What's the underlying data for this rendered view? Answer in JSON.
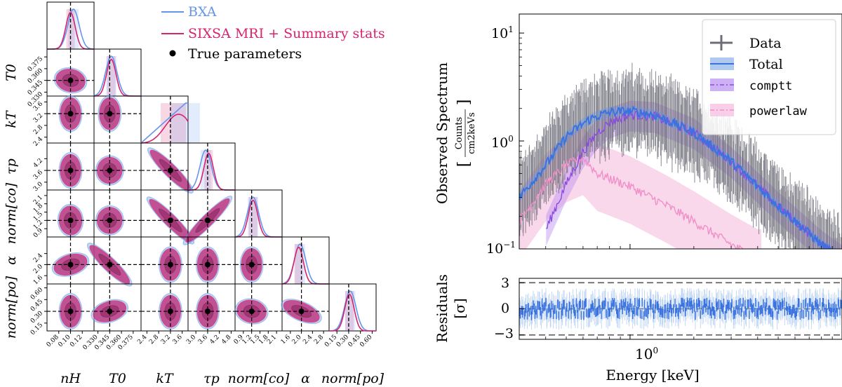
{
  "colors": {
    "bxa": "#6495ed",
    "sixsa": "#d6246e",
    "sixsa_fill": "#c0307a",
    "bxa_fill": "#8fb3e8",
    "data": "#6d6d78",
    "total": "#3a73e0",
    "comptt": "#8a4ce0",
    "powerlaw": "#f08fc8"
  },
  "corner": {
    "legend": [
      "BXA",
      "SIXSA MRI + Summary stats",
      "True parameters"
    ],
    "params": [
      "n_H",
      "T_0",
      "kT",
      "τ_p",
      "norm[co]",
      "α",
      "norm[po]"
    ],
    "xlabels": [
      "nH",
      "T0",
      "kT",
      "τp",
      "norm[co]",
      "α",
      "norm[po]"
    ],
    "ylabels": [
      "T0",
      "kT",
      "τp",
      "norm[co]",
      "α",
      "norm[po]"
    ],
    "xticks": [
      [
        "0.08",
        "0.10",
        "0.12"
      ],
      [
        "0.330",
        "0.345",
        "0.360",
        "0.375"
      ],
      [
        "2.4",
        "2.8",
        "3.2",
        "3.6"
      ],
      [
        "3.0",
        "3.6",
        "4.2",
        "4.8"
      ],
      [
        "0.9",
        "1.2",
        "1.5",
        "1.8",
        "2.1"
      ],
      [
        "1.6",
        "2.0",
        "2.4",
        "2.8"
      ],
      [
        "0.15",
        "0.30",
        "0.45",
        "0.60"
      ]
    ],
    "yticks": [
      [
        "0.330",
        "0.345",
        "0.360",
        "0.375"
      ],
      [
        "2.4",
        "2.8",
        "3.2",
        "3.6"
      ],
      [
        "3.0",
        "3.6",
        "4.2"
      ],
      [
        "0.9",
        "1.2",
        "1.5",
        "1.8",
        "2.1"
      ],
      [
        "1.6",
        "2.0",
        "2.4"
      ],
      [
        "0.15",
        "0.30",
        "0.45",
        "0.60"
      ]
    ],
    "true_values": [
      0.1,
      0.345,
      3.2,
      3.6,
      1.2,
      2.0,
      0.3
    ]
  },
  "chart_data": [
    {
      "type": "corner",
      "title": "",
      "series": [
        {
          "name": "BXA"
        },
        {
          "name": "SIXSA MRI + Summary stats"
        },
        {
          "name": "True parameters"
        }
      ],
      "parameters": [
        "n_H",
        "T_0",
        "kT",
        "tau_p",
        "norm[co]",
        "alpha",
        "norm[po]"
      ],
      "ranges": [
        [
          0.06,
          0.14
        ],
        [
          0.325,
          0.385
        ],
        [
          2.2,
          3.8
        ],
        [
          2.6,
          5.0
        ],
        [
          0.6,
          2.3
        ],
        [
          1.3,
          3.0
        ],
        [
          0.05,
          0.65
        ]
      ],
      "true_values": [
        0.1,
        0.345,
        3.2,
        3.6,
        1.2,
        2.0,
        0.3
      ],
      "posterior_peaks_bxa": [
        0.105,
        0.347,
        3.7,
        3.5,
        1.25,
        1.95,
        0.32
      ],
      "posterior_peaks_sixsa": [
        0.1,
        0.347,
        3.3,
        3.65,
        1.25,
        1.9,
        0.31
      ]
    },
    {
      "type": "line",
      "title": "",
      "xlabel": "Energy [keV]",
      "ylabel": "Observed Spectrum",
      "ylabel_units": "Counts / cm2 keV s",
      "xscale": "log",
      "yscale": "log",
      "xlim": [
        0.3,
        10
      ],
      "ylim": [
        0.1,
        15
      ],
      "x_tick_labels": [
        "10^0"
      ],
      "y_tick_labels": [
        "10^-1",
        "10^0",
        "10^1"
      ],
      "legend": [
        "Data",
        "Total",
        "comptt",
        "powerlaw"
      ],
      "series": [
        {
          "name": "Total",
          "x": [
            0.3,
            0.4,
            0.5,
            0.6,
            0.65,
            0.7,
            0.8,
            1.0,
            1.3,
            2.0,
            3.0,
            5.0,
            8.0,
            10.0
          ],
          "y": [
            0.3,
            0.6,
            1.1,
            1.45,
            1.6,
            1.7,
            1.85,
            1.9,
            1.75,
            1.2,
            0.65,
            0.25,
            0.11,
            0.08
          ]
        },
        {
          "name": "comptt",
          "x": [
            0.4,
            0.5,
            0.6,
            0.7,
            0.8,
            1.0,
            1.3,
            2.0,
            3.0,
            5.0,
            8.0,
            10.0
          ],
          "y": [
            0.15,
            0.4,
            0.8,
            1.2,
            1.5,
            1.75,
            1.7,
            1.2,
            0.65,
            0.25,
            0.11,
            0.08
          ]
        },
        {
          "name": "powerlaw",
          "x": [
            0.3,
            0.4,
            0.5,
            0.6,
            0.7,
            1.0,
            1.5,
            2.0,
            3.0,
            4.0
          ],
          "y": [
            0.18,
            0.4,
            0.6,
            0.7,
            0.5,
            0.38,
            0.25,
            0.18,
            0.11,
            0.08
          ]
        }
      ]
    },
    {
      "type": "line",
      "title": "",
      "xlabel": "Energy [keV]",
      "ylabel": "Residuals [σ]",
      "xscale": "log",
      "xlim": [
        0.3,
        10
      ],
      "ylim": [
        -3.5,
        3.5
      ],
      "y_tick_labels": [
        "-3",
        "0",
        "3"
      ],
      "reference_lines": [
        -3,
        0,
        3
      ]
    }
  ],
  "spectrum": {
    "ylabel": "Observed Spectrum",
    "ylabel_units_num": "Counts",
    "ylabel_units_den": "cm2keVs",
    "xlabel": "Energy [keV]",
    "x_tick_base": "10",
    "x_tick_exp": "0",
    "y_ticks": [
      {
        "base": "10",
        "exp": "1"
      },
      {
        "base": "10",
        "exp": "0"
      },
      {
        "base": "10",
        "exp": "−1"
      }
    ],
    "legend": [
      "Data",
      "Total",
      "comptt",
      "powerlaw"
    ]
  },
  "residuals": {
    "ylabel": "Residuals",
    "ylabel_unit": "[σ]",
    "y_ticks": [
      "3",
      "0",
      "−3"
    ]
  }
}
